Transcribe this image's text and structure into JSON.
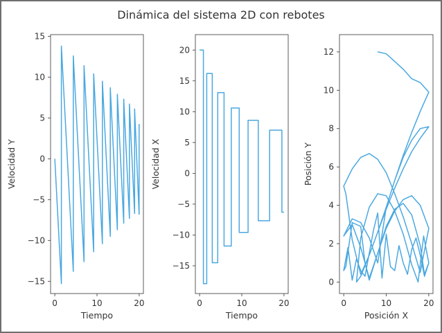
{
  "chart_data": {
    "title": "Dinámica del sistema 2D con rebotes",
    "line_color": "#4aa8e0",
    "subplots": [
      {
        "type": "line",
        "xlabel": "Tiempo",
        "ylabel": "Velocidad Y",
        "xlim": [
          -1,
          21
        ],
        "ylim": [
          -16.5,
          15.2
        ],
        "xticks": [
          0,
          10,
          20
        ],
        "yticks": [
          -15,
          -10,
          -5,
          0,
          5,
          10,
          15
        ],
        "series": [
          {
            "x": [
              0,
              1.56,
              1.56,
              4.38,
              4.38,
              6.93,
              6.93,
              9.22,
              9.22,
              11.28,
              11.28,
              13.15,
              13.15,
              14.82,
              14.82,
              16.33,
              16.33,
              17.69,
              17.69,
              18.91,
              18.91,
              19.98,
              19.98,
              20.0
            ],
            "y": [
              0,
              -15.3,
              13.8,
              -13.8,
              12.6,
              -12.6,
              11.4,
              -11.4,
              10.4,
              -10.4,
              9.5,
              -9.5,
              8.7,
              -8.7,
              7.9,
              -7.9,
              7.3,
              -7.3,
              6.7,
              -6.7,
              6.1,
              -6.8,
              4.2,
              4.0
            ]
          }
        ]
      },
      {
        "type": "line",
        "xlabel": "Tiempo",
        "ylabel": "Velocidad X",
        "xlim": [
          -1,
          21
        ],
        "ylim": [
          -19.5,
          22.5
        ],
        "xticks": [
          0,
          10,
          20
        ],
        "yticks": [
          -15,
          -10,
          -5,
          0,
          5,
          10,
          15,
          20
        ],
        "series": [
          {
            "x": [
              0,
              0.9,
              0.9,
              1.7,
              1.7,
              3.0,
              3.0,
              4.3,
              4.3,
              5.8,
              5.8,
              7.5,
              7.5,
              9.4,
              9.4,
              11.5,
              11.5,
              13.9,
              13.9,
              16.6,
              16.6,
              19.5,
              19.5,
              20.0
            ],
            "y": [
              20,
              20,
              -17.9,
              -17.9,
              16.2,
              16.2,
              -14.5,
              -14.5,
              13.1,
              13.1,
              -11.8,
              -11.8,
              10.6,
              10.6,
              -9.6,
              -9.6,
              8.6,
              8.6,
              -7.7,
              -7.7,
              7.0,
              7.0,
              -6.3,
              -6.3
            ]
          }
        ]
      },
      {
        "type": "line",
        "xlabel": "Posición X",
        "ylabel": "Posición Y",
        "xlim": [
          -1,
          21
        ],
        "ylim": [
          -0.6,
          12.9
        ],
        "xticks": [
          0,
          10,
          20
        ],
        "yticks": [
          0,
          2,
          4,
          6,
          8,
          10,
          12
        ],
        "series": [
          {
            "x": [
              8,
              10,
              12,
              14,
              16,
              18,
              20,
              18,
              16,
              14,
              12,
              10,
              8,
              6,
              4,
              2,
              0.5,
              0,
              2,
              4,
              6,
              8,
              10,
              12,
              14,
              16,
              18,
              20,
              18,
              16,
              14,
              12,
              10,
              8,
              6,
              4,
              2,
              0,
              2,
              4,
              6,
              8,
              10,
              12,
              14,
              16,
              18,
              20,
              18,
              16,
              14,
              12,
              10,
              8,
              6,
              4,
              3,
              4,
              6,
              8,
              10,
              12,
              14,
              16,
              17.5,
              18.8,
              20,
              19,
              18,
              16,
              14,
              12,
              10,
              8,
              6,
              5,
              4,
              2,
              0.5,
              0,
              1,
              2,
              3,
              4,
              5,
              6,
              7,
              8,
              9,
              10,
              11,
              12,
              13,
              14,
              15,
              16,
              17,
              18,
              19,
              20
            ],
            "y": [
              12.0,
              11.9,
              11.5,
              11.1,
              10.6,
              10.4,
              9.9,
              8.9,
              7.8,
              6.6,
              5.3,
              3.9,
              2.6,
              1.4,
              0.4,
              2.2,
              4.6,
              5.0,
              5.9,
              6.5,
              6.7,
              6.4,
              5.7,
              4.6,
              3.4,
              2.0,
              0.5,
              2.8,
              4.0,
              4.5,
              4.3,
              3.7,
              2.8,
              1.5,
              0.2,
              1.8,
              3.0,
              2.4,
              3.3,
              3.1,
              2.3,
              1.0,
              3.9,
              5.3,
              6.5,
              7.4,
              8.0,
              8.1,
              7.5,
              6.8,
              5.9,
              4.9,
              3.8,
              2.6,
              1.4,
              0.3,
              0.0,
              2.3,
              3.9,
              4.6,
              4.5,
              3.7,
              2.5,
              0.9,
              0.0,
              2.4,
              1.0,
              0.4,
              1.9,
              3.5,
              4.1,
              3.8,
              2.9,
              1.5,
              0.1,
              1.0,
              2.9,
              3.1,
              0.8,
              0.6,
              1.8,
              0.1,
              1.2,
              0.6,
              0.3,
              1.5,
              2.7,
              3.6,
              0.2,
              2.5,
              0.8,
              0.6,
              1.9,
              1.0,
              0.4,
              1.7,
              2.3,
              1.4,
              0.3,
              1.0
            ]
          }
        ]
      }
    ]
  }
}
